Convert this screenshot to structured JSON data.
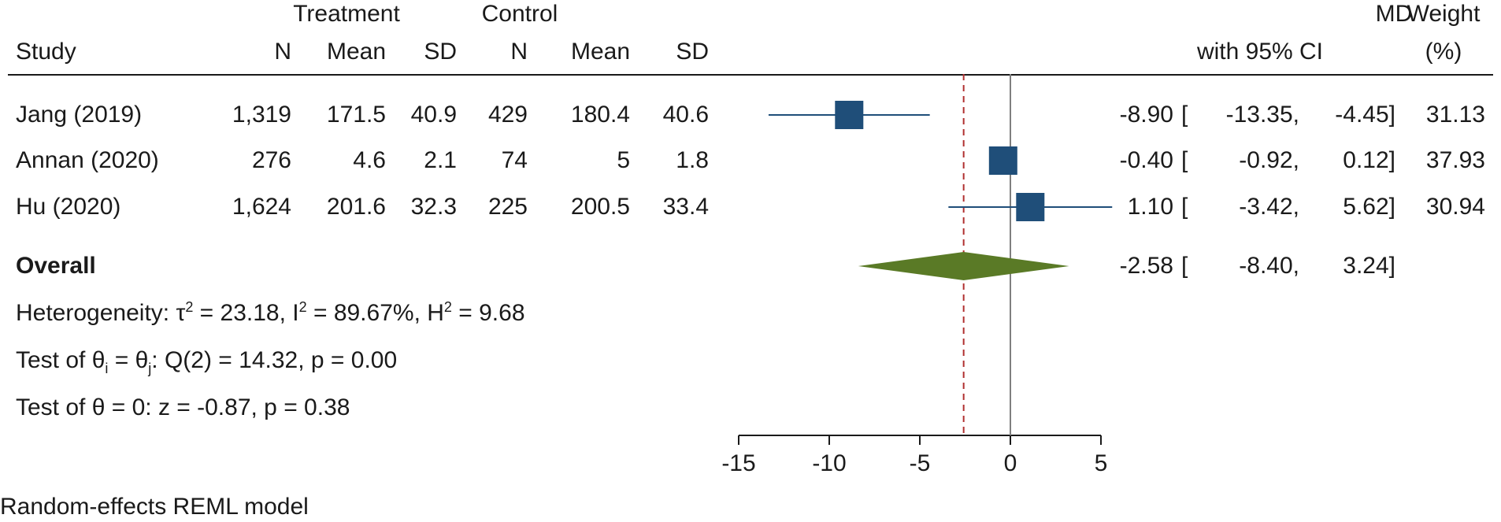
{
  "header": {
    "treatment": "Treatment",
    "control": "Control",
    "md": "MD",
    "weight": "Weight",
    "study": "Study",
    "n": "N",
    "mean": "Mean",
    "sd": "SD",
    "ci": "with 95% CI",
    "weight_unit": "(%)"
  },
  "rows": [
    {
      "study": "Jang (2019)",
      "tn": "1,319",
      "tmean": "171.5",
      "tsd": "40.9",
      "cn": "429",
      "cmean": "180.4",
      "csd": "40.6",
      "md": "-8.90",
      "lo": "-13.35,",
      "hi": "-4.45]",
      "weight": "31.13"
    },
    {
      "study": "Annan (2020)",
      "tn": "276",
      "tmean": "4.6",
      "tsd": "2.1",
      "cn": "74",
      "cmean": "5",
      "csd": "1.8",
      "md": "-0.40",
      "lo": "-0.92,",
      "hi": "0.12]",
      "weight": "37.93"
    },
    {
      "study": "Hu (2020)",
      "tn": "1,624",
      "tmean": "201.6",
      "tsd": "32.3",
      "cn": "225",
      "cmean": "200.5",
      "csd": "33.4",
      "md": "1.10",
      "lo": "-3.42,",
      "hi": "5.62]",
      "weight": "30.94"
    }
  ],
  "overall": {
    "label": "Overall",
    "md": "-2.58",
    "lo": "-8.40,",
    "hi": "3.24]"
  },
  "bracket": "[",
  "stats": {
    "het_a": "Heterogeneity: τ",
    "het_sup1": "2",
    "het_b": " = 23.18, I",
    "het_sup2": "2",
    "het_c": " = 89.67%, H",
    "het_sup3": "2",
    "het_d": " = 9.68",
    "test1_a": "Test of θ",
    "test1_sub1": "i",
    "test1_b": " = θ",
    "test1_sub2": "j",
    "test1_c": ": Q(2) = 14.32, p = 0.00",
    "test2": "Test of θ = 0: z = -0.87, p = 0.38"
  },
  "footer": "Random-effects REML model",
  "colors": {
    "square": "#1f4e79",
    "line": "#1f4e79",
    "diamond": "#5a7a26",
    "dashed": "#b03030",
    "zero": "#7f7f7f"
  },
  "chart_data": {
    "type": "forest",
    "xlim": [
      -15,
      5
    ],
    "ticks": [
      -15,
      -10,
      -5,
      0,
      5
    ],
    "zero_line": 0,
    "overall_line": -2.58,
    "studies": [
      {
        "name": "Jang (2019)",
        "md": -8.9,
        "lo": -13.35,
        "hi": -4.45,
        "weight": 31.13
      },
      {
        "name": "Annan (2020)",
        "md": -0.4,
        "lo": -0.92,
        "hi": 0.12,
        "weight": 37.93
      },
      {
        "name": "Hu (2020)",
        "md": 1.1,
        "lo": -3.42,
        "hi": 5.62,
        "weight": 30.94
      }
    ],
    "overall": {
      "md": -2.58,
      "lo": -8.4,
      "hi": 3.24
    }
  }
}
